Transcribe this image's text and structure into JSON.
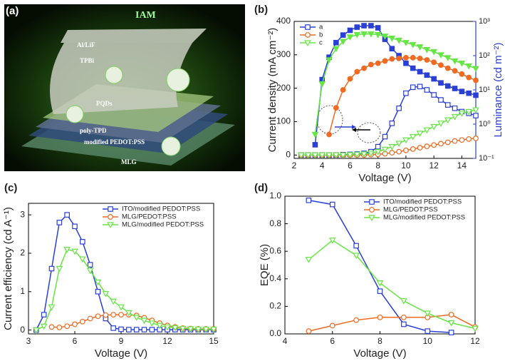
{
  "illustration": {
    "label": "(a)",
    "texts": [
      "IAM",
      "Al/LiF",
      "TPBi",
      "PQDs",
      "poly-TPD",
      "modified PEDOT:PSS",
      "MLG"
    ]
  },
  "chart_data": [
    {
      "type": "line",
      "panel_label": "(b)",
      "x_label": "Voltage (V)",
      "y_label": "Current density (mA cm⁻²)",
      "y2_label": "Luminance (cd m⁻²)",
      "y2_color": "#2a3fd6",
      "xlim": [
        2,
        15
      ],
      "xticks": [
        2,
        4,
        6,
        8,
        10,
        12,
        14
      ],
      "ylim": [
        -10,
        400
      ],
      "yticks": [
        0,
        100,
        200,
        300,
        400
      ],
      "y2lim": [
        0.1,
        1000
      ],
      "y2log": true,
      "y2ticks": [
        {
          "value": 0.1,
          "label": "10⁻¹"
        },
        {
          "value": 1,
          "label": "10⁰"
        },
        {
          "value": 10,
          "label": "10¹"
        },
        {
          "value": 100,
          "label": "10²"
        },
        {
          "value": 1000,
          "label": "10³"
        }
      ],
      "legend": "upper left",
      "x": [
        2.5,
        3,
        3.5,
        4,
        4.5,
        5,
        5.5,
        6,
        6.5,
        7,
        7.5,
        8,
        8.5,
        9,
        9.5,
        10,
        10.5,
        11,
        11.5,
        12,
        12.5,
        13,
        13.5,
        14,
        14.5,
        15
      ],
      "series": [
        {
          "name": "a",
          "color": "#2a3fd6",
          "marker": "square",
          "filled": false,
          "values": [
            0,
            0,
            0,
            0,
            0,
            0,
            1,
            2,
            3,
            5,
            10,
            25,
            55,
            95,
            140,
            185,
            203,
            205,
            195,
            180,
            165,
            150,
            140,
            130,
            125,
            118
          ]
        },
        {
          "name": "b",
          "color": "#f06a22",
          "marker": "circle",
          "filled": false,
          "values": [
            0,
            0,
            0,
            0,
            0,
            0,
            0,
            0,
            0,
            0,
            1,
            2,
            4,
            7,
            10,
            14,
            18,
            22,
            26,
            30,
            34,
            38,
            42,
            45,
            48,
            50
          ]
        },
        {
          "name": "c",
          "color": "#66e644",
          "marker": "triangle-down",
          "filled": false,
          "values": [
            0,
            0,
            0,
            0,
            0,
            0,
            0,
            1,
            2,
            3,
            5,
            10,
            17,
            25,
            35,
            45,
            55,
            65,
            75,
            85,
            95,
            105,
            115,
            125,
            130,
            135
          ]
        },
        {
          "color": "#2a3fd6",
          "marker": "square",
          "filled": true,
          "axis": "y2",
          "values": [
            null,
            null,
            0.25,
            20,
            90,
            240,
            400,
            550,
            680,
            750,
            750,
            650,
            300,
            160,
            100,
            60,
            43,
            34,
            27,
            21,
            16,
            13,
            11,
            9,
            8,
            7
          ]
        },
        {
          "color": "#f06a22",
          "marker": "circle",
          "filled": true,
          "axis": "y2",
          "values": [
            null,
            null,
            null,
            null,
            0.5,
            3,
            10,
            21,
            34,
            43,
            55,
            60,
            70,
            80,
            83,
            87,
            87,
            83,
            75,
            64,
            53,
            43,
            36,
            29,
            23,
            19
          ]
        },
        {
          "color": "#66e644",
          "marker": "triangle-down",
          "filled": true,
          "axis": "y2",
          "values": [
            null,
            null,
            0.5,
            15,
            75,
            160,
            260,
            350,
            410,
            430,
            430,
            410,
            370,
            325,
            280,
            240,
            210,
            180,
            150,
            130,
            105,
            87,
            70,
            60,
            50,
            42
          ]
        }
      ]
    },
    {
      "type": "line",
      "panel_label": "(c)",
      "x_label": "Voltage (V)",
      "y_label": "Current efficiency (cd A⁻¹)",
      "xlim": [
        3,
        15
      ],
      "xticks": [
        3,
        6,
        9,
        12,
        15
      ],
      "ylim": [
        -0.1,
        3.3
      ],
      "yticks": [
        0,
        1,
        2,
        3
      ],
      "legend": "upper right",
      "x": [
        3.5,
        4,
        4.5,
        5,
        5.5,
        6,
        6.5,
        7,
        7.5,
        8,
        8.5,
        9,
        9.5,
        10,
        10.5,
        11,
        11.5,
        12,
        12.5,
        13,
        13.5,
        14,
        14.5,
        15
      ],
      "series": [
        {
          "name": "ITO/modified PEDOT:PSS",
          "color": "#2a3fd6",
          "marker": "square",
          "filled": false,
          "values": [
            0,
            0.4,
            1.6,
            2.8,
            3.0,
            2.7,
            2.3,
            1.7,
            1.0,
            0.3,
            0.05,
            0.02,
            0.01,
            0.01,
            0.01,
            0.01,
            0.01,
            0.01,
            0.01,
            0.01,
            0.01,
            0.01,
            0.01,
            0.01
          ]
        },
        {
          "name": "MLG/PEDOT:PSS",
          "color": "#f06a22",
          "marker": "circle",
          "filled": false,
          "values": [
            null,
            null,
            0.08,
            0.07,
            0.1,
            0.15,
            0.22,
            0.3,
            0.36,
            0.39,
            0.4,
            0.4,
            0.4,
            0.38,
            0.32,
            0.25,
            0.18,
            0.12,
            0.08,
            0.05,
            0.04,
            0.03,
            0.03,
            0.03
          ]
        },
        {
          "name": "MLG/modified PEDOT:PSS",
          "color": "#66e644",
          "marker": "triangle-down",
          "filled": false,
          "values": [
            0,
            0.1,
            0.6,
            1.6,
            2.1,
            2.05,
            1.85,
            1.55,
            1.25,
            0.95,
            0.75,
            0.6,
            0.45,
            0.33,
            0.25,
            0.18,
            0.12,
            0.08,
            0.06,
            0.04,
            0.03,
            0.02,
            0.02,
            0.02
          ]
        }
      ]
    },
    {
      "type": "line",
      "panel_label": "(d)",
      "x_label": "Voltage (V)",
      "y_label": "EQE (%)",
      "xlim": [
        4,
        12
      ],
      "xticks": [
        4,
        6,
        8,
        10,
        12
      ],
      "ylim": [
        0,
        1.0
      ],
      "yticks": [
        {
          "value": 0,
          "label": "0.0"
        },
        0.2,
        0.4,
        0.6,
        0.8,
        {
          "value": 1,
          "label": "1.0"
        }
      ],
      "legend": "upper right",
      "x": [
        5,
        6,
        7,
        8,
        9,
        10,
        11,
        12
      ],
      "series": [
        {
          "name": "ITO/modified PEDOT:PSS",
          "color": "#2a3fd6",
          "marker": "square",
          "filled": false,
          "values": [
            0.97,
            0.94,
            0.64,
            0.31,
            0.07,
            0.02,
            0.01,
            null
          ]
        },
        {
          "name": "MLG/PEDOT:PSS",
          "color": "#f06a22",
          "marker": "circle",
          "filled": false,
          "values": [
            0.02,
            0.06,
            0.1,
            0.12,
            0.12,
            0.12,
            0.14,
            0.05
          ]
        },
        {
          "name": "MLG/modified PEDOT:PSS",
          "color": "#66e644",
          "marker": "triangle-down",
          "filled": false,
          "values": [
            0.54,
            0.68,
            0.57,
            0.37,
            0.24,
            0.15,
            0.08,
            0.04
          ]
        }
      ]
    }
  ]
}
